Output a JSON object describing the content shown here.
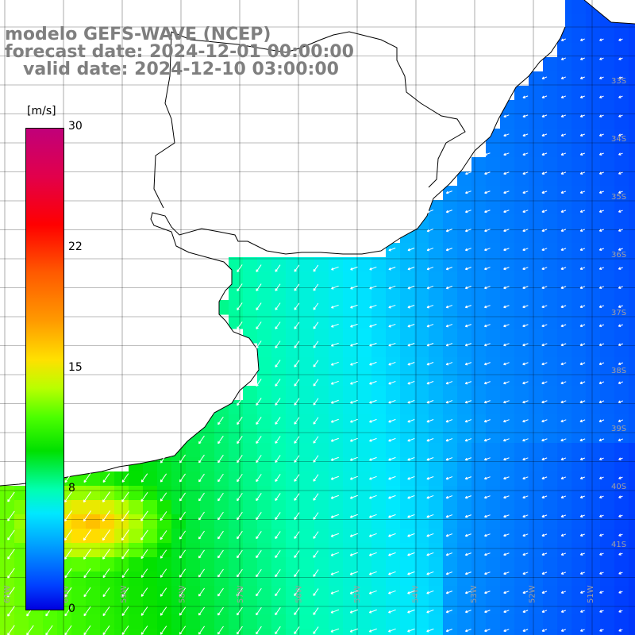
{
  "title": {
    "line1": "modelo GEFS-WAVE (NCEP)",
    "line2": "forecast date: 2024-12-01 00:00:00",
    "line3": "   valid date: 2024-12-10 03:00:00"
  },
  "legend": {
    "unit": "[m/s]",
    "ticks": [
      "30",
      "22",
      "15",
      "8",
      "0"
    ],
    "tick_values": [
      30,
      22,
      15,
      8,
      0
    ],
    "range": [
      0,
      30
    ]
  },
  "lat_labels": [
    "33S",
    "34S",
    "35S",
    "36S",
    "37S",
    "38S",
    "39S",
    "40S",
    "41S"
  ],
  "lon_labels": [
    "61W",
    "60W",
    "59W",
    "58W",
    "57W",
    "56W",
    "55W",
    "54W",
    "53W",
    "52W",
    "51W"
  ],
  "colors": {
    "land": "#ffffff",
    "grid": "#000000",
    "coast": "#000000",
    "vectors": "#ffffff",
    "axis_labels": "#a0a0a0",
    "title": "#7f7f7f"
  }
}
